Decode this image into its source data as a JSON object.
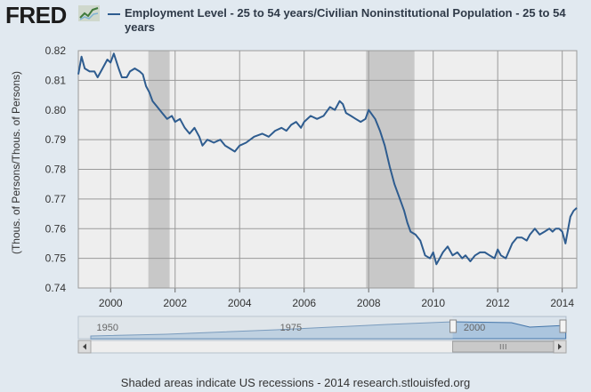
{
  "header": {
    "brand": "FRED",
    "brand_icon": "line-chart-icon",
    "legend_series": "Employment Level - 25 to 54 years/Civilian Noninstitutional Population - 25 to 54 years"
  },
  "colors": {
    "series": "#2e5c8f",
    "recession": "#c8c8c8",
    "plot_bg": "#eeeeee",
    "page_bg": "#e1e9f0"
  },
  "chart_data": {
    "type": "line",
    "ylabel": "(Thous. of Persons/Thous. of Persons)",
    "xlim": [
      1999.0,
      2014.45
    ],
    "ylim": [
      0.74,
      0.82
    ],
    "xticks": [
      "2000",
      "2002",
      "2004",
      "2006",
      "2008",
      "2010",
      "2012",
      "2014"
    ],
    "yticks": [
      "0.74",
      "0.75",
      "0.76",
      "0.77",
      "0.78",
      "0.79",
      "0.80",
      "0.81",
      "0.82"
    ],
    "grid": true,
    "recessions": [
      [
        2001.17,
        2001.83
      ],
      [
        2007.92,
        2009.42
      ]
    ],
    "series": [
      {
        "name": "Employment Level - 25 to 54 years/Civilian Noninstitutional Population - 25 to 54 years",
        "x": [
          1999.0,
          1999.1,
          1999.2,
          1999.35,
          1999.5,
          1999.6,
          1999.75,
          1999.9,
          2000.0,
          2000.1,
          2000.25,
          2000.35,
          2000.5,
          2000.6,
          2000.75,
          2000.9,
          2001.0,
          2001.1,
          2001.2,
          2001.3,
          2001.45,
          2001.6,
          2001.75,
          2001.9,
          2002.0,
          2002.15,
          2002.3,
          2002.45,
          2002.6,
          2002.75,
          2002.85,
          2003.0,
          2003.2,
          2003.4,
          2003.55,
          2003.7,
          2003.85,
          2004.0,
          2004.2,
          2004.45,
          2004.7,
          2004.9,
          2005.1,
          2005.3,
          2005.45,
          2005.6,
          2005.75,
          2005.9,
          2006.0,
          2006.2,
          2006.4,
          2006.6,
          2006.8,
          2006.95,
          2007.1,
          2007.2,
          2007.3,
          2007.45,
          2007.6,
          2007.75,
          2007.9,
          2008.0,
          2008.2,
          2008.35,
          2008.5,
          2008.65,
          2008.8,
          2009.0,
          2009.1,
          2009.2,
          2009.3,
          2009.45,
          2009.6,
          2009.75,
          2009.9,
          2010.0,
          2010.1,
          2010.2,
          2010.3,
          2010.45,
          2010.6,
          2010.75,
          2010.9,
          2011.0,
          2011.15,
          2011.3,
          2011.45,
          2011.6,
          2011.75,
          2011.9,
          2012.0,
          2012.1,
          2012.25,
          2012.45,
          2012.6,
          2012.75,
          2012.9,
          2013.0,
          2013.15,
          2013.3,
          2013.45,
          2013.6,
          2013.7,
          2013.8,
          2013.9,
          2014.0,
          2014.1,
          2014.25,
          2014.35,
          2014.45
        ],
        "values": [
          0.812,
          0.818,
          0.814,
          0.813,
          0.813,
          0.811,
          0.814,
          0.817,
          0.816,
          0.819,
          0.814,
          0.811,
          0.811,
          0.813,
          0.814,
          0.813,
          0.812,
          0.808,
          0.806,
          0.803,
          0.801,
          0.799,
          0.797,
          0.798,
          0.796,
          0.797,
          0.794,
          0.792,
          0.794,
          0.791,
          0.788,
          0.79,
          0.789,
          0.79,
          0.788,
          0.787,
          0.786,
          0.788,
          0.789,
          0.791,
          0.792,
          0.791,
          0.793,
          0.794,
          0.793,
          0.795,
          0.796,
          0.794,
          0.796,
          0.798,
          0.797,
          0.798,
          0.801,
          0.8,
          0.803,
          0.802,
          0.799,
          0.798,
          0.797,
          0.796,
          0.797,
          0.8,
          0.797,
          0.793,
          0.788,
          0.781,
          0.775,
          0.769,
          0.766,
          0.762,
          0.759,
          0.758,
          0.756,
          0.751,
          0.75,
          0.752,
          0.748,
          0.75,
          0.752,
          0.754,
          0.751,
          0.752,
          0.75,
          0.751,
          0.749,
          0.751,
          0.752,
          0.752,
          0.751,
          0.75,
          0.753,
          0.751,
          0.75,
          0.755,
          0.757,
          0.757,
          0.756,
          0.758,
          0.76,
          0.758,
          0.759,
          0.76,
          0.759,
          0.76,
          0.76,
          0.759,
          0.755,
          0.764,
          0.766,
          0.767
        ]
      }
    ],
    "navigator": {
      "labels": [
        "1950",
        "1975",
        "2000"
      ]
    }
  },
  "footer": {
    "note": "Shaded areas indicate US recessions - 2014 research.stlouisfed.org"
  }
}
